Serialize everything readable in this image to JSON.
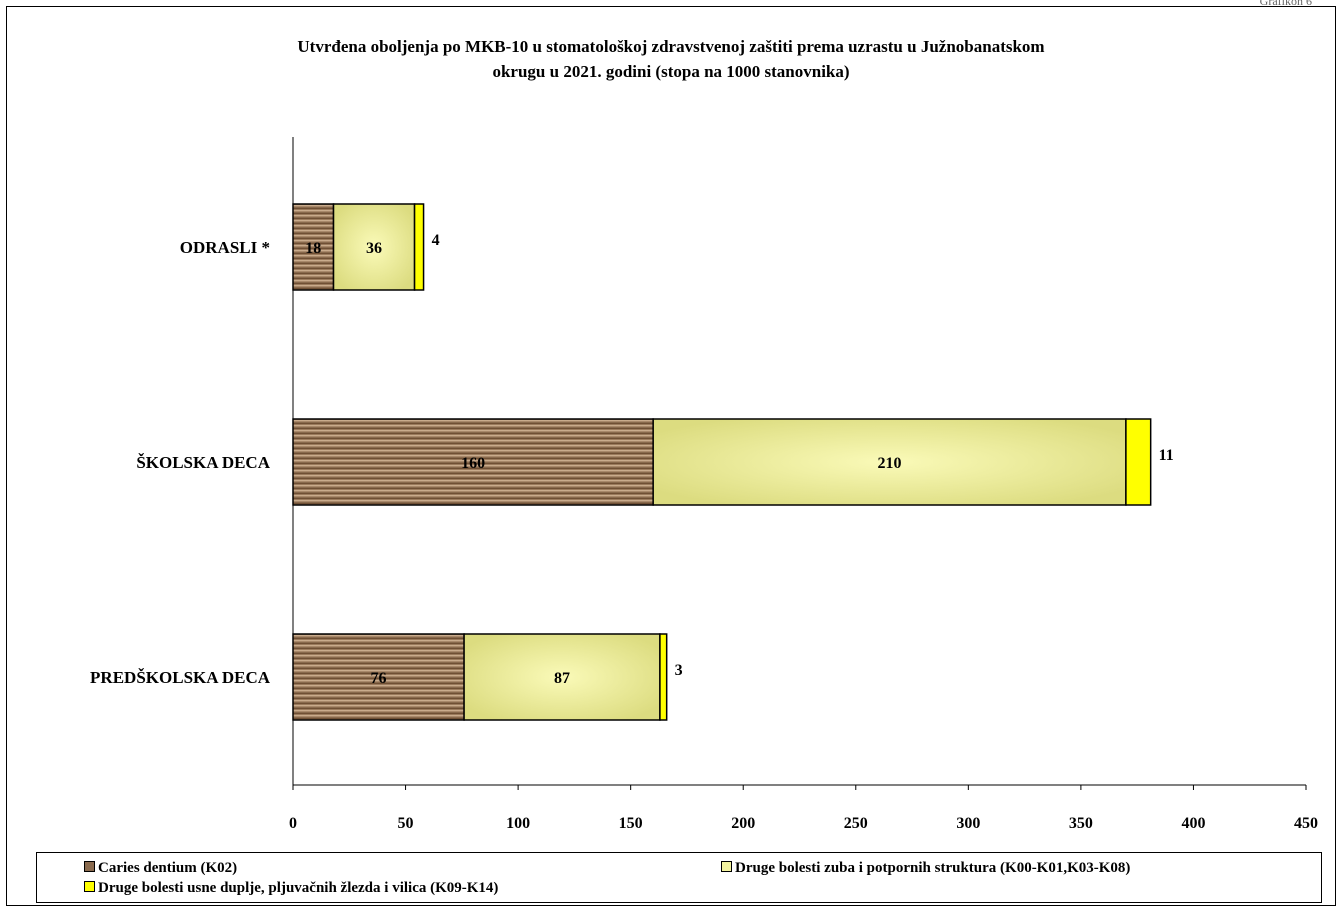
{
  "page_corner_text": "Grafikon 6",
  "chart_data": {
    "type": "bar",
    "orientation": "horizontal",
    "stacked": true,
    "title_lines": [
      "Utvrđena oboljenja po MKB-10 u stomatološkoj zdravstvenoj zaštiti prema uzrastu u Južnobanatskom",
      "okrugu  u 2021. godini (stopa na 1000 stanovnika)"
    ],
    "categories": [
      "ODRASLI *",
      "ŠKOLSKA DECA",
      "PREDŠKOLSKA DECA"
    ],
    "series": [
      {
        "name": "Caries dentium (K02)",
        "color": "#8a6a4e",
        "values": [
          18,
          160,
          76
        ]
      },
      {
        "name": "Druge bolesti zuba i potpornih struktura (K00-K01,K03-K08)",
        "color": "#f4f4a0",
        "values": [
          36,
          210,
          87
        ]
      },
      {
        "name": "Druge bolesti usne duplje, pljuvačnih žlezda i vilica (K09-K14)",
        "color": "#ffff00",
        "values": [
          4,
          11,
          3
        ]
      }
    ],
    "xlim": [
      0,
      450
    ],
    "xticks": [
      0,
      50,
      100,
      150,
      200,
      250,
      300,
      350,
      400,
      450
    ],
    "xlabel": "",
    "ylabel": "",
    "grid": false,
    "legend_position": "bottom"
  }
}
